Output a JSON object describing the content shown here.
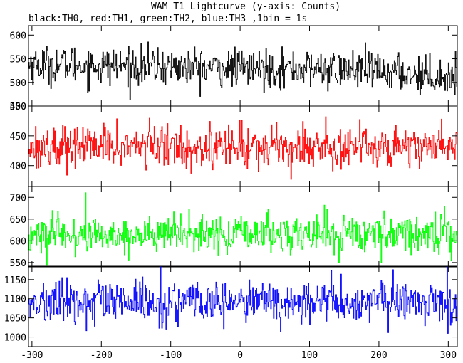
{
  "chart_data": {
    "type": "line",
    "title": "WAM T1 Lightcurve (y-axis: Counts)",
    "subtitle": "black:TH0, red:TH1, green:TH2, blue:TH3 ,1bin = 1s",
    "xlim": [
      -305,
      313
    ],
    "x_ticks": [
      -300,
      -200,
      -100,
      0,
      100,
      200,
      300
    ],
    "x_tick_labels": [
      "-300",
      "-200",
      "-100",
      "0",
      "100",
      "200",
      "300"
    ],
    "grid": false,
    "panels": [
      {
        "series": "TH0",
        "color": "#000000",
        "ylim": [
          450,
          620
        ],
        "y_ticks": [
          450,
          500,
          550,
          600
        ],
        "y_tick_labels": [
          "450",
          "500",
          "550",
          "600"
        ],
        "mean": 532,
        "sigma": 20,
        "trend_x": [
          -300,
          -150,
          0,
          150,
          250,
          310
        ],
        "trend_y": [
          538,
          534,
          530,
          527,
          518,
          512
        ]
      },
      {
        "series": "TH1",
        "color": "#ff0000",
        "ylim": [
          365,
          500
        ],
        "y_ticks": [
          400,
          450,
          500
        ],
        "y_tick_labels": [
          "400",
          "450",
          "500"
        ],
        "mean": 432,
        "sigma": 18,
        "trend_x": [
          -300,
          0,
          310
        ],
        "trend_y": [
          432,
          432,
          434
        ]
      },
      {
        "series": "TH2",
        "color": "#00ff00",
        "ylim": [
          540,
          725
        ],
        "y_ticks": [
          550,
          600,
          650,
          700
        ],
        "y_tick_labels": [
          "550",
          "600",
          "650",
          "700"
        ],
        "mean": 615,
        "sigma": 22,
        "trend_x": [
          -300,
          0,
          310
        ],
        "trend_y": [
          612,
          615,
          618
        ]
      },
      {
        "series": "TH3",
        "color": "#0000ff",
        "ylim": [
          975,
          1185
        ],
        "y_ticks": [
          1000,
          1050,
          1100,
          1150
        ],
        "y_tick_labels": [
          "1000",
          "1050",
          "1100",
          "1150"
        ],
        "mean": 1090,
        "sigma": 28,
        "trend_x": [
          -300,
          0,
          310
        ],
        "trend_y": [
          1088,
          1090,
          1092
        ]
      }
    ]
  }
}
